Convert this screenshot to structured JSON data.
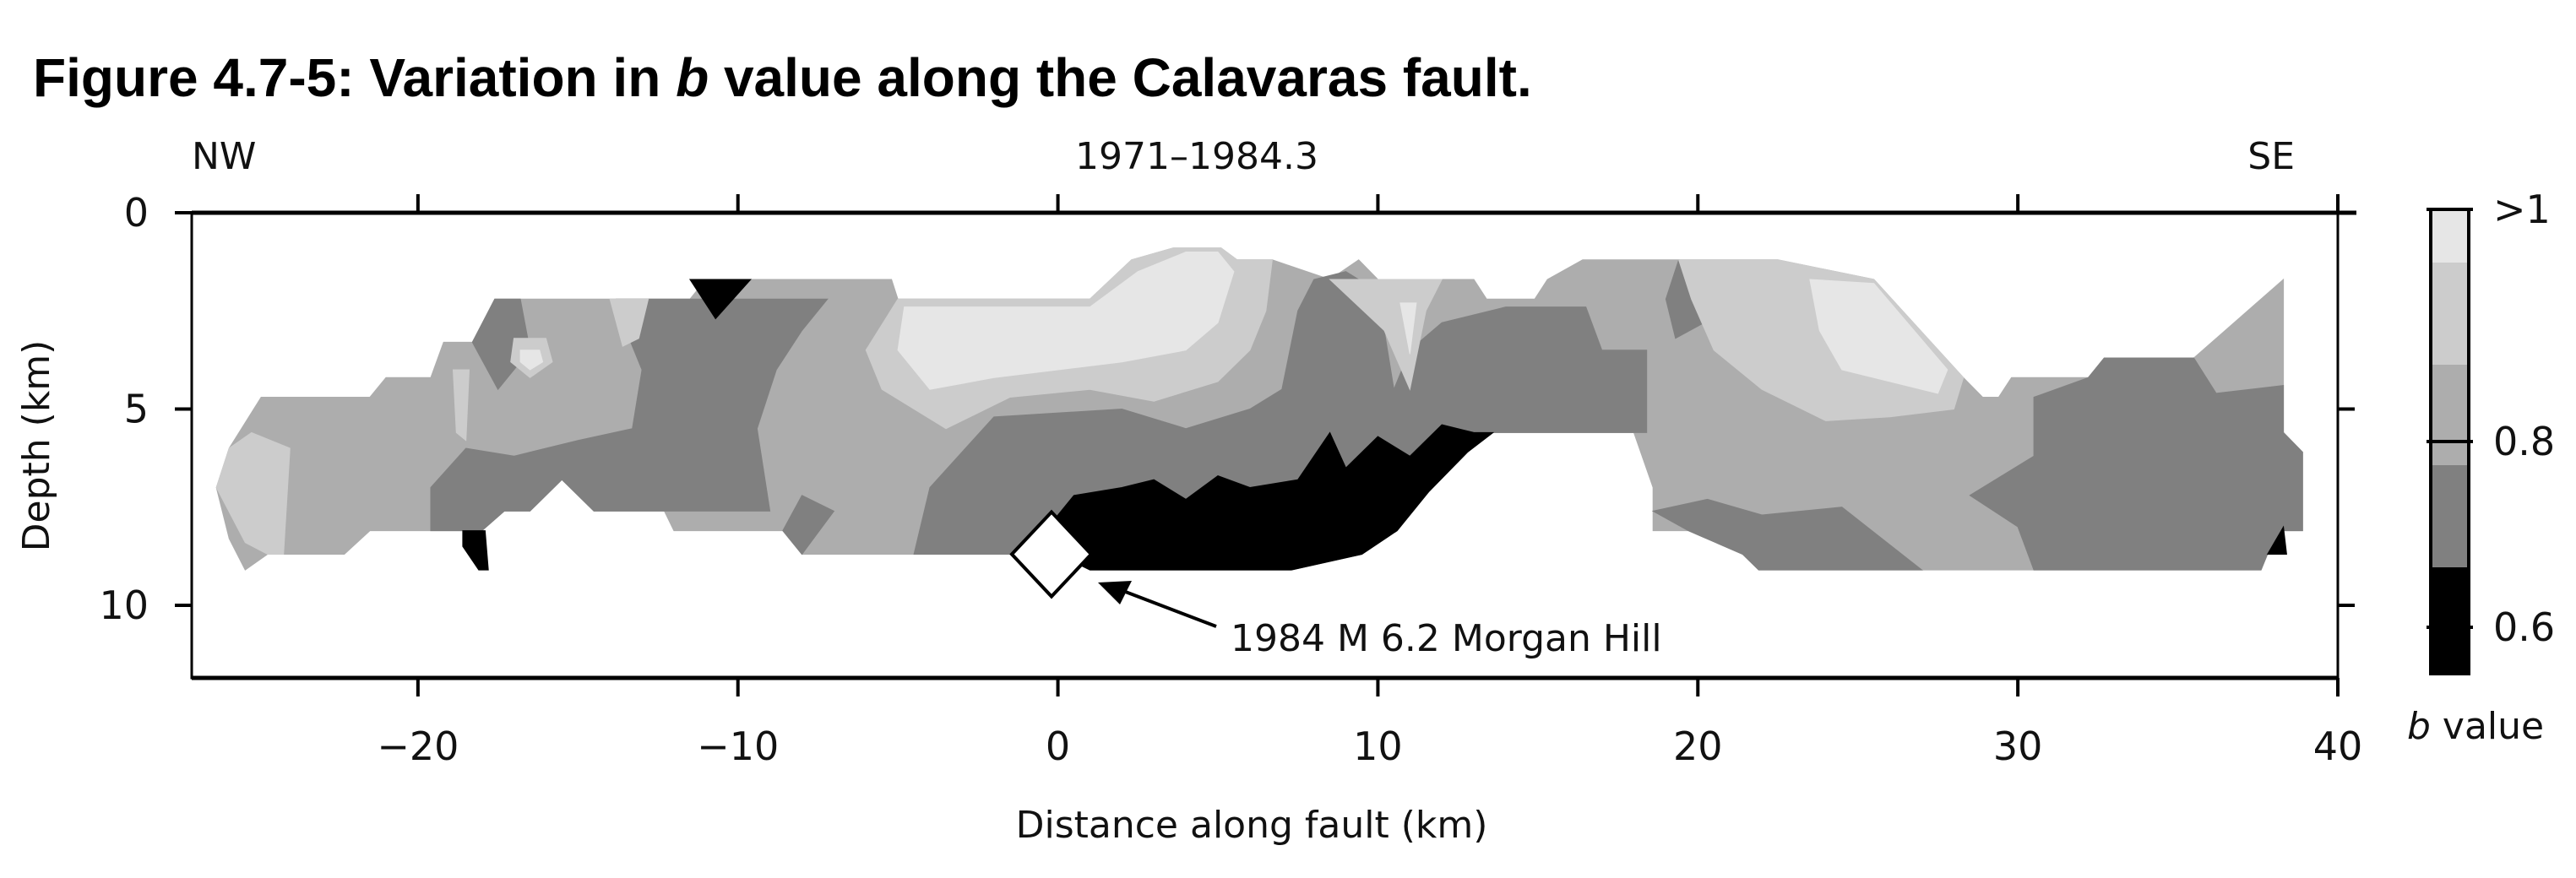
{
  "title": "Figure 4.7-5: Variation in b value along the Calavaras fault.",
  "title_parts": {
    "pre": "Figure 4.7-5: Variation in ",
    "italic": "b",
    "post": " value along the Calavaras fault."
  },
  "chart_data": {
    "type": "heatmap",
    "subtype": "filled-contour cross-section",
    "top_labels": {
      "left": "NW",
      "center": "1971–1984.3",
      "right": "SE"
    },
    "xlabel": "Distance along fault (km)",
    "ylabel": "Depth (km)",
    "xlim": [
      -27.07,
      40
    ],
    "ylim": [
      0,
      11.85
    ],
    "y_inverted": true,
    "xticks": [
      -20,
      -10,
      0,
      10,
      20,
      30,
      40
    ],
    "xtick_labels": [
      "−20",
      "−10",
      "0",
      "10",
      "20",
      "30",
      "40"
    ],
    "yticks": [
      0,
      5,
      10
    ],
    "ytick_labels": [
      "0",
      "5",
      "10"
    ],
    "colorbar": {
      "label_italic": "b",
      "label_rest": " value",
      "range": [
        0.55,
        1.05
      ],
      "tick_values": [
        1.05,
        0.8,
        0.6
      ],
      "tick_labels": [
        ">1",
        "0.8",
        "0.6"
      ],
      "levels": [
        {
          "range": "<0.65",
          "color": "#000000"
        },
        {
          "range": "0.65–0.75",
          "color": "#808080"
        },
        {
          "range": "0.75–0.85",
          "color": "#adadad"
        },
        {
          "range": "0.85–0.95",
          "color": "#cccccc"
        },
        {
          "range": ">0.95",
          "color": "#e6e6e6"
        }
      ]
    },
    "regions": [
      {
        "level": 2,
        "points": [
          [
            -26.3,
            7.0
          ],
          [
            -25.9,
            6.0
          ],
          [
            -24.9,
            4.7
          ],
          [
            -21.5,
            4.7
          ],
          [
            -21.0,
            4.2
          ],
          [
            -19.6,
            4.2
          ],
          [
            -19.2,
            3.3
          ],
          [
            -18.3,
            3.3
          ],
          [
            -17.6,
            2.2
          ],
          [
            -11.5,
            2.2
          ],
          [
            -11.0,
            1.7
          ],
          [
            -5.2,
            1.7
          ],
          [
            -5.0,
            2.2
          ],
          [
            1.0,
            2.2
          ],
          [
            2.3,
            1.2
          ],
          [
            3.6,
            0.9
          ],
          [
            5.1,
            0.9
          ],
          [
            5.6,
            1.2
          ],
          [
            6.7,
            1.2
          ],
          [
            8.5,
            1.7
          ],
          [
            9.4,
            1.2
          ],
          [
            10.0,
            1.7
          ],
          [
            13.0,
            1.7
          ],
          [
            13.4,
            2.2
          ],
          [
            14.9,
            2.2
          ],
          [
            15.3,
            1.7
          ],
          [
            16.4,
            1.2
          ],
          [
            22.5,
            1.2
          ],
          [
            25.5,
            1.7
          ],
          [
            28.3,
            4.2
          ],
          [
            28.9,
            4.7
          ],
          [
            29.4,
            4.7
          ],
          [
            29.8,
            4.2
          ],
          [
            32.2,
            4.2
          ],
          [
            32.7,
            3.7
          ],
          [
            35.5,
            3.7
          ],
          [
            38.3,
            1.7
          ],
          [
            38.3,
            5.6
          ],
          [
            38.9,
            6.1
          ],
          [
            38.9,
            8.1
          ],
          [
            38.3,
            8.1
          ],
          [
            37.8,
            8.7
          ],
          [
            37.6,
            9.1
          ],
          [
            21.9,
            9.1
          ],
          [
            21.4,
            8.7
          ],
          [
            19.7,
            8.1
          ],
          [
            18.6,
            8.1
          ],
          [
            18.6,
            7.0
          ],
          [
            18.0,
            5.6
          ],
          [
            13.6,
            5.6
          ],
          [
            12.8,
            6.1
          ],
          [
            11.6,
            7.1
          ],
          [
            10.6,
            8.1
          ],
          [
            9.5,
            8.7
          ],
          [
            7.3,
            9.1
          ],
          [
            1.0,
            9.1
          ],
          [
            0,
            8.7
          ],
          [
            -4.8,
            8.7
          ],
          [
            -8.0,
            8.7
          ],
          [
            -8.6,
            8.1
          ],
          [
            -12.0,
            8.1
          ],
          [
            -12.3,
            7.6
          ],
          [
            -14.5,
            7.6
          ],
          [
            -15.5,
            6.8
          ],
          [
            -16.5,
            7.6
          ],
          [
            -17.3,
            7.6
          ],
          [
            -18.0,
            8.1
          ],
          [
            -19.6,
            8.1
          ],
          [
            -21.5,
            8.1
          ],
          [
            -22.3,
            8.7
          ],
          [
            -24.7,
            8.7
          ],
          [
            -25.4,
            9.1
          ],
          [
            -25.9,
            8.3
          ]
        ]
      },
      {
        "level": 1,
        "points": [
          [
            -13.8,
            2.2
          ],
          [
            -7.2,
            2.2
          ],
          [
            -8.0,
            3.0
          ],
          [
            -8.8,
            4.0
          ],
          [
            -9.4,
            5.5
          ],
          [
            -9.0,
            7.6
          ],
          [
            -12.3,
            7.6
          ],
          [
            -14.5,
            7.6
          ],
          [
            -15.5,
            6.8
          ],
          [
            -16.5,
            7.6
          ],
          [
            -17.3,
            7.6
          ],
          [
            -18.0,
            8.1
          ],
          [
            -19.6,
            8.1
          ],
          [
            -19.6,
            7.0
          ],
          [
            -18.5,
            6.0
          ],
          [
            -17.0,
            6.2
          ],
          [
            -15.0,
            5.8
          ],
          [
            -13.3,
            5.5
          ],
          [
            -13.0,
            4.0
          ],
          [
            -13.5,
            3.0
          ]
        ]
      },
      {
        "level": 1,
        "points": [
          [
            -17.6,
            2.2
          ],
          [
            -16.8,
            2.2
          ],
          [
            -16.5,
            3.5
          ],
          [
            -17.5,
            4.5
          ],
          [
            -18.3,
            3.3
          ]
        ]
      },
      {
        "level": 1,
        "points": [
          [
            -8.6,
            8.1
          ],
          [
            -8.0,
            7.2
          ],
          [
            -7.0,
            7.6
          ],
          [
            -8.0,
            8.7
          ]
        ]
      },
      {
        "level": 1,
        "points": [
          [
            -4.5,
            8.7
          ],
          [
            -4.0,
            7.0
          ],
          [
            -2.0,
            5.2
          ],
          [
            2.0,
            5.0
          ],
          [
            4.0,
            5.5
          ],
          [
            6.0,
            5.0
          ],
          [
            7.0,
            4.5
          ],
          [
            7.5,
            2.5
          ],
          [
            8.0,
            1.7
          ],
          [
            9.0,
            1.5
          ],
          [
            10.0,
            2.0
          ],
          [
            10.5,
            4.5
          ],
          [
            11.0,
            3.5
          ],
          [
            12.0,
            2.8
          ],
          [
            14.0,
            2.4
          ],
          [
            16.5,
            2.4
          ],
          [
            17.0,
            3.5
          ],
          [
            18.4,
            3.5
          ],
          [
            18.4,
            5.6
          ],
          [
            13.6,
            5.6
          ],
          [
            12.8,
            6.1
          ],
          [
            11.6,
            7.1
          ],
          [
            10.6,
            8.1
          ],
          [
            9.5,
            8.7
          ],
          [
            7.3,
            9.1
          ],
          [
            1.0,
            9.1
          ],
          [
            0,
            8.7
          ]
        ]
      },
      {
        "level": 1,
        "points": [
          [
            30.5,
            4.7
          ],
          [
            32.2,
            4.2
          ],
          [
            32.7,
            3.7
          ],
          [
            35.5,
            3.7
          ],
          [
            36.2,
            4.6
          ],
          [
            38.3,
            4.4
          ],
          [
            38.3,
            5.6
          ],
          [
            38.9,
            6.1
          ],
          [
            38.9,
            8.1
          ],
          [
            38.3,
            8.1
          ],
          [
            37.8,
            8.7
          ],
          [
            37.6,
            9.1
          ],
          [
            30.5,
            9.1
          ],
          [
            30.0,
            8.0
          ],
          [
            28.5,
            7.2
          ],
          [
            30.5,
            6.2
          ]
        ]
      },
      {
        "level": 1,
        "points": [
          [
            18.6,
            7.6
          ],
          [
            20.3,
            7.3
          ],
          [
            22.0,
            7.7
          ],
          [
            24.5,
            7.5
          ],
          [
            27.0,
            9.1
          ],
          [
            21.9,
            9.1
          ],
          [
            21.4,
            8.7
          ],
          [
            19.7,
            8.1
          ]
        ]
      },
      {
        "level": 1,
        "points": [
          [
            19.0,
            2.2
          ],
          [
            19.4,
            1.2
          ],
          [
            20.6,
            1.3
          ],
          [
            20.2,
            2.8
          ],
          [
            19.3,
            3.2
          ]
        ]
      },
      {
        "level": 0,
        "points": [
          [
            -11.5,
            1.7
          ],
          [
            -9.6,
            1.7
          ],
          [
            -10.7,
            2.7
          ]
        ]
      },
      {
        "level": 0,
        "points": [
          [
            -18.6,
            8.1
          ],
          [
            -17.9,
            8.1
          ],
          [
            -17.8,
            9.1
          ],
          [
            -18.1,
            9.1
          ],
          [
            -18.6,
            8.5
          ]
        ]
      },
      {
        "level": 0,
        "points": [
          [
            0,
            8.7
          ],
          [
            -0.3,
            8.0
          ],
          [
            0.5,
            7.2
          ],
          [
            2.0,
            7.0
          ],
          [
            3.0,
            6.8
          ],
          [
            4.0,
            7.3
          ],
          [
            5.0,
            6.7
          ],
          [
            6.0,
            7.0
          ],
          [
            7.5,
            6.8
          ],
          [
            8.5,
            5.6
          ],
          [
            9.0,
            6.5
          ],
          [
            10.0,
            5.7
          ],
          [
            11.0,
            6.2
          ],
          [
            12.0,
            5.4
          ],
          [
            13.0,
            5.6
          ],
          [
            13.6,
            5.6
          ],
          [
            12.8,
            6.1
          ],
          [
            11.6,
            7.1
          ],
          [
            10.6,
            8.1
          ],
          [
            9.5,
            8.7
          ],
          [
            7.3,
            9.1
          ],
          [
            1.0,
            9.1
          ]
        ]
      },
      {
        "level": 0,
        "points": [
          [
            37.8,
            8.7
          ],
          [
            38.3,
            8.0
          ],
          [
            38.4,
            8.7
          ]
        ]
      },
      {
        "level": 3,
        "points": [
          [
            -26.3,
            7.0
          ],
          [
            -25.9,
            6.0
          ],
          [
            -25.2,
            5.6
          ],
          [
            -24.0,
            6.0
          ],
          [
            -24.2,
            8.7
          ],
          [
            -24.7,
            8.7
          ],
          [
            -25.4,
            8.4
          ]
        ]
      },
      {
        "level": 3,
        "points": [
          [
            -6.0,
            3.5
          ],
          [
            -5.0,
            2.2
          ],
          [
            1.0,
            2.2
          ],
          [
            2.3,
            1.2
          ],
          [
            3.6,
            0.9
          ],
          [
            5.1,
            0.9
          ],
          [
            5.6,
            1.2
          ],
          [
            6.7,
            1.2
          ],
          [
            6.5,
            2.5
          ],
          [
            6.0,
            3.5
          ],
          [
            5.0,
            4.3
          ],
          [
            3.0,
            4.8
          ],
          [
            1.0,
            4.5
          ],
          [
            -1.5,
            4.7
          ],
          [
            -3.5,
            5.5
          ],
          [
            -5.5,
            4.5
          ]
        ]
      },
      {
        "level": 3,
        "points": [
          [
            8.5,
            1.7
          ],
          [
            10.0,
            1.7
          ],
          [
            12.0,
            1.7
          ],
          [
            11.5,
            2.5
          ],
          [
            11.0,
            4.5
          ],
          [
            10.2,
            3.0
          ]
        ]
      },
      {
        "level": 3,
        "points": [
          [
            19.4,
            1.2
          ],
          [
            22.5,
            1.2
          ],
          [
            25.5,
            1.7
          ],
          [
            28.3,
            4.2
          ],
          [
            28.0,
            5.0
          ],
          [
            26.0,
            5.2
          ],
          [
            24.0,
            5.3
          ],
          [
            22.0,
            4.5
          ],
          [
            20.5,
            3.5
          ],
          [
            19.8,
            2.2
          ]
        ]
      },
      {
        "level": 3,
        "points": [
          [
            -17.0,
            3.2
          ],
          [
            -16.0,
            3.2
          ],
          [
            -15.8,
            3.8
          ],
          [
            -16.5,
            4.2
          ],
          [
            -17.1,
            3.8
          ]
        ]
      },
      {
        "level": 3,
        "points": [
          [
            -18.9,
            4.0
          ],
          [
            -18.4,
            4.0
          ],
          [
            -18.5,
            5.8
          ],
          [
            -18.8,
            5.6
          ]
        ]
      },
      {
        "level": 3,
        "points": [
          [
            -14.0,
            2.2
          ],
          [
            -12.8,
            2.2
          ],
          [
            -13.1,
            3.2
          ],
          [
            -13.6,
            3.4
          ]
        ]
      },
      {
        "level": 4,
        "points": [
          [
            -5.0,
            3.5
          ],
          [
            -4.8,
            2.4
          ],
          [
            1.0,
            2.4
          ],
          [
            2.5,
            1.5
          ],
          [
            4.0,
            1.0
          ],
          [
            5.0,
            1.0
          ],
          [
            5.5,
            1.5
          ],
          [
            5.0,
            2.8
          ],
          [
            4.0,
            3.5
          ],
          [
            2.0,
            3.8
          ],
          [
            0,
            4.0
          ],
          [
            -2.0,
            4.2
          ],
          [
            -4.0,
            4.5
          ]
        ]
      },
      {
        "level": 4,
        "points": [
          [
            23.5,
            1.7
          ],
          [
            25.5,
            1.8
          ],
          [
            27.8,
            4.0
          ],
          [
            27.5,
            4.6
          ],
          [
            25.5,
            4.2
          ],
          [
            24.5,
            4.0
          ],
          [
            23.8,
            3.0
          ]
        ]
      },
      {
        "level": 4,
        "points": [
          [
            -16.8,
            3.5
          ],
          [
            -16.2,
            3.5
          ],
          [
            -16.1,
            3.8
          ],
          [
            -16.5,
            4.0
          ],
          [
            -16.8,
            3.8
          ]
        ]
      },
      {
        "level": 4,
        "points": [
          [
            10.7,
            2.3
          ],
          [
            11.2,
            2.3
          ],
          [
            11.0,
            3.6
          ]
        ]
      }
    ],
    "events": [
      {
        "label": "1984 M 6.2 Morgan Hill",
        "distance_km": -0.2,
        "depth_km": 8.7,
        "marker": "diamond"
      }
    ]
  }
}
